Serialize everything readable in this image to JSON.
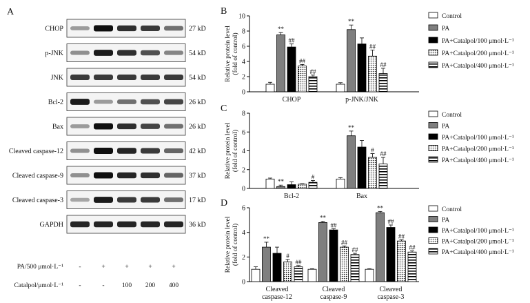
{
  "blot": {
    "panel_label": "A",
    "rows": [
      {
        "label": "CHOP",
        "size": "27 kD",
        "intensity": [
          0.35,
          1.0,
          0.85,
          0.8,
          0.55
        ]
      },
      {
        "label": "p-JNK",
        "size": "54 kD",
        "intensity": [
          0.4,
          0.95,
          0.85,
          0.7,
          0.45
        ]
      },
      {
        "label": "JNK",
        "size": "54 kD",
        "intensity": [
          0.8,
          0.8,
          0.8,
          0.8,
          0.8
        ]
      },
      {
        "label": "Bcl-2",
        "size": "26 kD",
        "intensity": [
          0.95,
          0.35,
          0.55,
          0.7,
          0.75
        ]
      },
      {
        "label": "Bax",
        "size": "26 kD",
        "intensity": [
          0.35,
          1.0,
          0.85,
          0.75,
          0.55
        ]
      },
      {
        "label": "Cleaved caspase-12",
        "size": "42 kD",
        "intensity": [
          0.4,
          1.0,
          0.9,
          0.8,
          0.6
        ]
      },
      {
        "label": "Cleaved caspase-9",
        "size": "37 kD",
        "intensity": [
          0.4,
          1.0,
          0.9,
          0.85,
          0.6
        ]
      },
      {
        "label": "Cleaved caspase-3",
        "size": "17 kD",
        "intensity": [
          0.3,
          0.95,
          0.8,
          0.8,
          0.55
        ]
      },
      {
        "label": "GAPDH",
        "size": "36 kD",
        "intensity": [
          0.9,
          0.9,
          0.9,
          0.9,
          0.9
        ]
      }
    ],
    "treatments": [
      {
        "label": "PA/500 μmol·L⁻¹",
        "values": [
          "-",
          "+",
          "+",
          "+",
          "+"
        ]
      },
      {
        "label": "Catalpol/μmol·L⁻¹",
        "values": [
          "-",
          "-",
          "100",
          "200",
          "400"
        ]
      }
    ]
  },
  "colors": {
    "control": "#ffffff",
    "pa": "#7f7f7f",
    "cat100": "#000000",
    "cat200": "dotted",
    "cat400": "striped"
  },
  "chart_data": [
    {
      "panel": "B",
      "type": "bar",
      "ylabel": "Relative protein level (fold of control)",
      "ylabel_lines": [
        "Relative protein level",
        "(fold of control)"
      ],
      "ylim": [
        0,
        10
      ],
      "yticks": [
        "0",
        "2",
        "4",
        "6",
        "8",
        "10"
      ],
      "categories": [
        "CHOP",
        "p-JNK/JNK"
      ],
      "series": [
        {
          "name": "Control",
          "values": [
            1.0,
            1.0
          ],
          "errors": [
            0.25,
            0.2
          ],
          "marks": [
            "",
            ""
          ]
        },
        {
          "name": "PA",
          "values": [
            7.5,
            8.2
          ],
          "errors": [
            0.3,
            0.6
          ],
          "marks": [
            "**",
            "**"
          ]
        },
        {
          "name": "PA+Catalpol/100 μmol·L⁻¹",
          "values": [
            5.9,
            6.3
          ],
          "errors": [
            0.4,
            0.8
          ],
          "marks": [
            "##",
            ""
          ]
        },
        {
          "name": "PA+Catalpol/200 μmol·L⁻¹",
          "values": [
            3.4,
            4.7
          ],
          "errors": [
            0.2,
            0.8
          ],
          "marks": [
            "##",
            "##"
          ]
        },
        {
          "name": "PA+Catalpol/400 μmol·L⁻¹",
          "values": [
            2.0,
            2.4
          ],
          "errors": [
            0.2,
            0.7
          ],
          "marks": [
            "##",
            "##"
          ]
        }
      ],
      "legend": "right"
    },
    {
      "panel": "C",
      "type": "bar",
      "ylabel": "Relative protein level (fold of control)",
      "ylabel_lines": [
        "Relative protein level",
        "(fold of control)"
      ],
      "ylim": [
        0,
        8
      ],
      "yticks": [
        "0",
        "2",
        "4",
        "6",
        "8"
      ],
      "categories": [
        "Bcl-2",
        "Bax"
      ],
      "series": [
        {
          "name": "Control",
          "values": [
            1.0,
            1.0
          ],
          "errors": [
            0.1,
            0.15
          ],
          "marks": [
            "",
            ""
          ]
        },
        {
          "name": "PA",
          "values": [
            0.2,
            5.6
          ],
          "errors": [
            0.15,
            0.5
          ],
          "marks": [
            "**",
            "**"
          ]
        },
        {
          "name": "PA+Catalpol/100 μmol·L⁻¹",
          "values": [
            0.4,
            4.4
          ],
          "errors": [
            0.3,
            0.7
          ],
          "marks": [
            "",
            ""
          ]
        },
        {
          "name": "PA+Catalpol/200 μmol·L⁻¹",
          "values": [
            0.45,
            3.3
          ],
          "errors": [
            0.05,
            0.4
          ],
          "marks": [
            "",
            "#"
          ]
        },
        {
          "name": "PA+Catalpol/400 μmol·L⁻¹",
          "values": [
            0.65,
            2.6
          ],
          "errors": [
            0.2,
            0.7
          ],
          "marks": [
            "#",
            "##"
          ]
        }
      ],
      "legend": "right"
    },
    {
      "panel": "D",
      "type": "bar",
      "ylabel": "Relative protein level (fold of control)",
      "ylabel_lines": [
        "Relative protein level",
        "(fold of control)"
      ],
      "ylim": [
        0,
        6
      ],
      "yticks": [
        "0",
        "2",
        "4",
        "6"
      ],
      "categories": [
        "Cleaved caspase-12",
        "Cleaved caspase-9",
        "Cleaved caspase-3"
      ],
      "category_lines": [
        [
          "Cleaved",
          "caspase-12"
        ],
        [
          "Cleaved",
          "caspase-9"
        ],
        [
          "Cleaved",
          "caspase-3"
        ]
      ],
      "series": [
        {
          "name": "Control",
          "values": [
            1.0,
            1.0,
            1.0
          ],
          "errors": [
            0.2,
            0.05,
            0.05
          ],
          "marks": [
            "",
            "",
            ""
          ]
        },
        {
          "name": "PA",
          "values": [
            2.8,
            4.8,
            5.6
          ],
          "errors": [
            0.4,
            0.1,
            0.1
          ],
          "marks": [
            "**",
            "**",
            "**"
          ]
        },
        {
          "name": "PA+Catalpol/100 μmol·L⁻¹",
          "values": [
            2.3,
            4.2,
            4.4
          ],
          "errors": [
            0.5,
            0.1,
            0.2
          ],
          "marks": [
            "",
            "##",
            "##"
          ]
        },
        {
          "name": "PA+Catalpol/200 μmol·L⁻¹",
          "values": [
            1.6,
            2.8,
            3.3
          ],
          "errors": [
            0.2,
            0.1,
            0.1
          ],
          "marks": [
            "#",
            "##",
            "##"
          ]
        },
        {
          "name": "PA+Catalpol/400 μmol·L⁻¹",
          "values": [
            1.2,
            2.2,
            2.4
          ],
          "errors": [
            0.1,
            0.1,
            0.1
          ],
          "marks": [
            "##",
            "##",
            "##"
          ]
        }
      ],
      "legend": "right"
    }
  ]
}
